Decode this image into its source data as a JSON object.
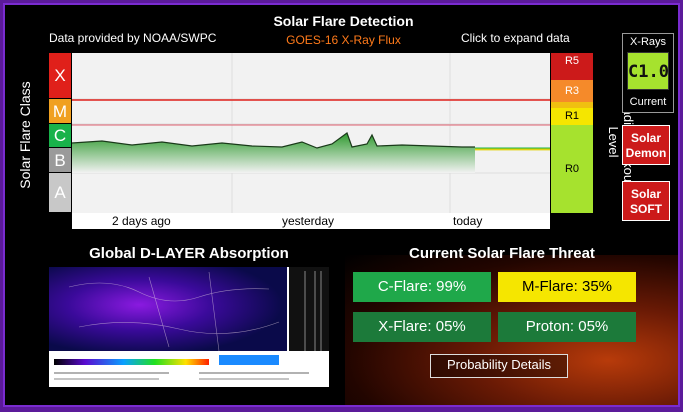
{
  "header": {
    "title": "Solar Flare Detection",
    "subtitle": "GOES-16 X-Ray Flux",
    "provided_by": "Data provided by NOAA/SWPC",
    "expand": "Click to expand data"
  },
  "axes": {
    "y_label": "Solar Flare Class",
    "right_label": "Radio Blackout Level",
    "classes": [
      "X",
      "M",
      "C",
      "B",
      "A"
    ],
    "x_ticks": [
      "2 days ago",
      "yesterday",
      "today"
    ]
  },
  "radio_blackout": [
    "R5",
    "R3",
    "R1",
    "R0"
  ],
  "xray_widget": {
    "header": "X-Rays",
    "value": "C1.0",
    "footer": "Current"
  },
  "buttons": {
    "solar_demon": "Solar Demon",
    "solar_soft": "Solar SOFT",
    "probability_details": "Probability Details"
  },
  "dlayer": {
    "title": "Global D-LAYER Absorption"
  },
  "threat": {
    "title": "Current Solar Flare Threat",
    "c_flare": "C-Flare: 99%",
    "m_flare": "M-Flare: 35%",
    "x_flare": "X-Flare: 05%",
    "proton": "Proton: 05%"
  },
  "colors": {
    "x": "#e0201a",
    "m": "#f0a020",
    "c": "#18b24a",
    "b": "#9a9a9a",
    "a": "#c8c8c8",
    "r5": "#cc1a1a",
    "r3": "#f58a2a",
    "r1": "#f5e600",
    "r0": "#a6e22e",
    "c_flare": "#1fa84a",
    "m_flare": "#f5e600",
    "x_flare": "#1c7a3a",
    "proton": "#1c7a3a"
  }
}
